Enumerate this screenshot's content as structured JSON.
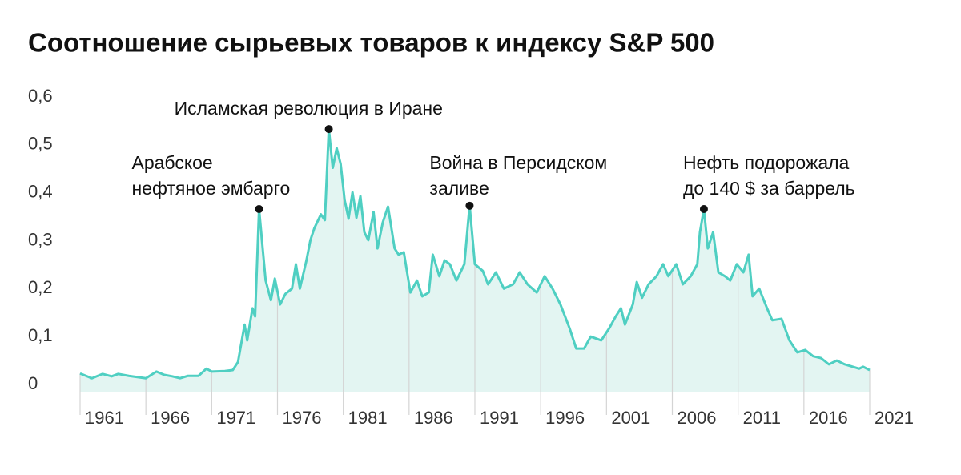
{
  "chart_data": {
    "type": "line",
    "title": "Соотношение сырьевых товаров к индексу S&P 500",
    "x": [
      1961,
      1961.9,
      1962.7,
      1963.4,
      1963.9,
      1964.7,
      1966,
      1966.8,
      1967.4,
      1968,
      1968.6,
      1969.2,
      1970,
      1970.6,
      1971,
      1972,
      1972.6,
      1973,
      1973.5,
      1973.7,
      1974.1,
      1974.3,
      1974.6,
      1975.1,
      1975.5,
      1975.8,
      1976.2,
      1976.6,
      1977.1,
      1977.4,
      1977.7,
      1978.2,
      1978.5,
      1978.8,
      1979.3,
      1979.6,
      1979.9,
      1980.2,
      1980.5,
      1980.8,
      1981.1,
      1981.4,
      1981.7,
      1982,
      1982.3,
      1982.6,
      1982.9,
      1983.3,
      1983.6,
      1984,
      1984.4,
      1984.9,
      1985.2,
      1985.6,
      1986.1,
      1986.6,
      1987,
      1987.5,
      1987.8,
      1988.3,
      1988.7,
      1989.1,
      1989.6,
      1990.2,
      1990.6,
      1991,
      1991.6,
      1992,
      1992.6,
      1993.2,
      1993.9,
      1994.4,
      1995,
      1995.7,
      1996.3,
      1996.9,
      1997.5,
      1998.2,
      1998.7,
      1999.3,
      1999.8,
      2000.6,
      2001.2,
      2001.7,
      2002.1,
      2002.4,
      2003,
      2003.3,
      2003.7,
      2004.2,
      2004.8,
      2005.3,
      2005.7,
      2006.3,
      2006.8,
      2007.4,
      2007.9,
      2008.1,
      2008.4,
      2008.7,
      2009.1,
      2009.5,
      2010,
      2010.4,
      2010.9,
      2011.4,
      2011.8,
      2012.1,
      2012.6,
      2013.2,
      2013.6,
      2014.3,
      2014.9,
      2015.5,
      2016.1,
      2016.7,
      2017.3,
      2017.9,
      2018.5,
      2019.1,
      2019.7,
      2020.2,
      2020.5,
      2021
    ],
    "values": [
      0.023,
      0.013,
      0.022,
      0.017,
      0.022,
      0.018,
      0.013,
      0.027,
      0.02,
      0.017,
      0.013,
      0.018,
      0.018,
      0.033,
      0.027,
      0.028,
      0.03,
      0.047,
      0.125,
      0.092,
      0.159,
      0.142,
      0.366,
      0.217,
      0.176,
      0.221,
      0.167,
      0.189,
      0.2,
      0.251,
      0.2,
      0.259,
      0.301,
      0.326,
      0.355,
      0.343,
      0.533,
      0.452,
      0.493,
      0.46,
      0.385,
      0.346,
      0.401,
      0.348,
      0.393,
      0.318,
      0.301,
      0.36,
      0.284,
      0.338,
      0.371,
      0.284,
      0.271,
      0.276,
      0.192,
      0.217,
      0.184,
      0.192,
      0.271,
      0.226,
      0.259,
      0.251,
      0.217,
      0.251,
      0.373,
      0.251,
      0.237,
      0.209,
      0.234,
      0.2,
      0.209,
      0.234,
      0.209,
      0.192,
      0.226,
      0.2,
      0.167,
      0.117,
      0.075,
      0.075,
      0.1,
      0.092,
      0.117,
      0.142,
      0.159,
      0.125,
      0.167,
      0.214,
      0.181,
      0.209,
      0.226,
      0.251,
      0.226,
      0.251,
      0.209,
      0.226,
      0.251,
      0.318,
      0.366,
      0.284,
      0.318,
      0.234,
      0.226,
      0.217,
      0.251,
      0.234,
      0.271,
      0.184,
      0.2,
      0.159,
      0.134,
      0.137,
      0.092,
      0.067,
      0.072,
      0.059,
      0.055,
      0.042,
      0.05,
      0.042,
      0.037,
      0.033,
      0.037,
      0.03
    ],
    "color": "#4fcfc2",
    "fill": "#e3f5f2",
    "xlim": [
      1961,
      2021
    ],
    "xticks": [
      1961,
      1966,
      1971,
      1976,
      1981,
      1986,
      1991,
      1996,
      2001,
      2006,
      2011,
      2016,
      2021
    ],
    "ylim": [
      0,
      0.6
    ],
    "yticks": [
      0,
      {
        "value": 0.1,
        "label": "0,1"
      },
      {
        "value": 0.2,
        "label": "0,2"
      },
      {
        "value": 0.3,
        "label": "0,3"
      },
      {
        "value": 0.4,
        "label": "0,4"
      },
      {
        "value": 0.5,
        "label": "0,5"
      },
      {
        "value": 0.6,
        "label": "0,6"
      }
    ],
    "grid": true,
    "annotations": [
      {
        "lines": [
          "Арабское",
          "нефтяное эмбарго"
        ],
        "x": 1974.6,
        "y": 0.366
      },
      {
        "lines": [
          "Исламская революция в Иране"
        ],
        "x": 1979.9,
        "y": 0.533
      },
      {
        "lines": [
          "Война в Персидском",
          "заливе"
        ],
        "x": 1990.6,
        "y": 0.373
      },
      {
        "lines": [
          "Нефть подорожала",
          "до 140 $ за баррель"
        ],
        "x": 2008.4,
        "y": 0.366
      }
    ]
  }
}
